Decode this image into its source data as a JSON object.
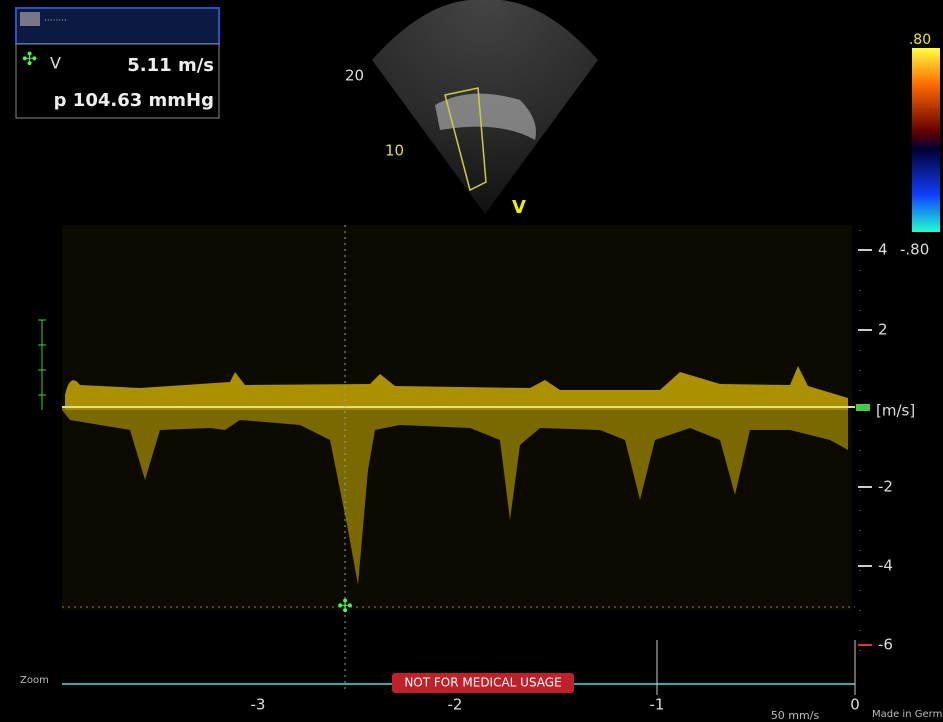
{
  "info_box": {
    "velocity_label": "V",
    "velocity": "5.11 m/s",
    "pressure": "p 104.63 mmHg"
  },
  "image": {
    "depth_20": "20",
    "depth_10": "10",
    "probe_label": "V"
  },
  "color_bar": {
    "top": ".80",
    "bottom": "-.80"
  },
  "velocity_scale": {
    "ticks": [
      "4",
      "2",
      "-2",
      "-4",
      "-6"
    ],
    "unit": "[m/s]"
  },
  "time_scale": {
    "ticks": [
      "-3",
      "-2",
      "-1",
      "0"
    ],
    "speed": "50 mm/s"
  },
  "footer": {
    "warning": "NOT FOR MEDICAL USAGE",
    "zoom": "Zoom",
    "made_in": "Made in Germ"
  }
}
